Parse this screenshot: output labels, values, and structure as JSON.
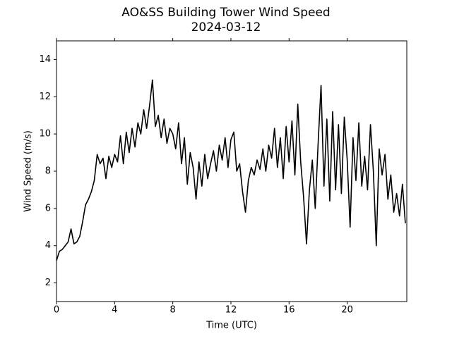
{
  "chart_data": {
    "type": "line",
    "title": "AO&SS Building Tower Wind Speed",
    "subtitle": "2024-03-12",
    "x_label": "Time (UTC)",
    "y_label": "Wind Speed (m/s)",
    "x": [
      0,
      0.2,
      0.4,
      0.6,
      0.8,
      1,
      1.2,
      1.4,
      1.6,
      1.8,
      2,
      2.2,
      2.4,
      2.6,
      2.8,
      3,
      3.2,
      3.4,
      3.6,
      3.8,
      4,
      4.2,
      4.4,
      4.6,
      4.8,
      5,
      5.2,
      5.4,
      5.6,
      5.8,
      6,
      6.2,
      6.4,
      6.6,
      6.8,
      7,
      7.2,
      7.4,
      7.6,
      7.8,
      8,
      8.2,
      8.4,
      8.6,
      8.8,
      9,
      9.2,
      9.4,
      9.6,
      9.8,
      10,
      10.2,
      10.4,
      10.6,
      10.8,
      11,
      11.2,
      11.4,
      11.6,
      11.8,
      12,
      12.2,
      12.4,
      12.6,
      12.8,
      13,
      13.2,
      13.4,
      13.6,
      13.8,
      14,
      14.2,
      14.4,
      14.6,
      14.8,
      15,
      15.2,
      15.4,
      15.6,
      15.8,
      16,
      16.2,
      16.4,
      16.6,
      16.8,
      17,
      17.2,
      17.4,
      17.6,
      17.8,
      18,
      18.2,
      18.4,
      18.6,
      18.8,
      19,
      19.2,
      19.4,
      19.6,
      19.8,
      20,
      20.2,
      20.4,
      20.6,
      20.8,
      21,
      21.2,
      21.4,
      21.6,
      21.8,
      22,
      22.2,
      22.4,
      22.6,
      22.8,
      23,
      23.2,
      23.4,
      23.6,
      23.8,
      24
    ],
    "series": [
      {
        "name": "Wind Speed",
        "color": "#000000",
        "values": [
          3.2,
          3.7,
          3.8,
          4.0,
          4.2,
          4.9,
          4.1,
          4.2,
          4.5,
          5.3,
          6.2,
          6.5,
          6.9,
          7.5,
          8.9,
          8.4,
          8.7,
          7.6,
          8.8,
          8.2,
          8.9,
          8.5,
          9.9,
          8.4,
          10.1,
          9.0,
          10.3,
          9.3,
          10.6,
          10.0,
          11.3,
          10.3,
          11.5,
          12.9,
          10.4,
          11.0,
          9.8,
          10.8,
          9.5,
          10.3,
          10.0,
          9.2,
          10.6,
          8.4,
          9.8,
          7.3,
          9.0,
          8.2,
          6.5,
          8.5,
          7.2,
          8.9,
          7.6,
          8.4,
          9.1,
          8.0,
          9.4,
          8.6,
          9.8,
          8.2,
          9.7,
          10.1,
          8.0,
          8.4,
          6.9,
          5.8,
          7.5,
          8.2,
          7.8,
          8.6,
          8.1,
          9.2,
          8.0,
          9.4,
          8.7,
          10.3,
          8.2,
          9.8,
          7.6,
          10.4,
          8.5,
          10.7,
          7.8,
          11.6,
          8.5,
          6.6,
          4.1,
          7.0,
          8.6,
          6.0,
          9.5,
          12.6,
          7.2,
          10.8,
          6.4,
          11.2,
          7.0,
          10.5,
          6.8,
          10.9,
          8.6,
          5.0,
          9.8,
          7.5,
          10.6,
          7.2,
          8.8,
          7.0,
          10.5,
          8.0,
          4.0,
          9.2,
          7.8,
          8.9,
          6.5,
          7.8,
          5.8,
          6.8,
          5.6,
          7.3,
          5.2
        ]
      }
    ],
    "xlim": [
      0,
      24.1
    ],
    "ylim": [
      1,
      15
    ],
    "xticks": [
      0,
      4,
      8,
      12,
      16,
      20
    ],
    "yticks": [
      2,
      4,
      6,
      8,
      10,
      12,
      14
    ]
  }
}
